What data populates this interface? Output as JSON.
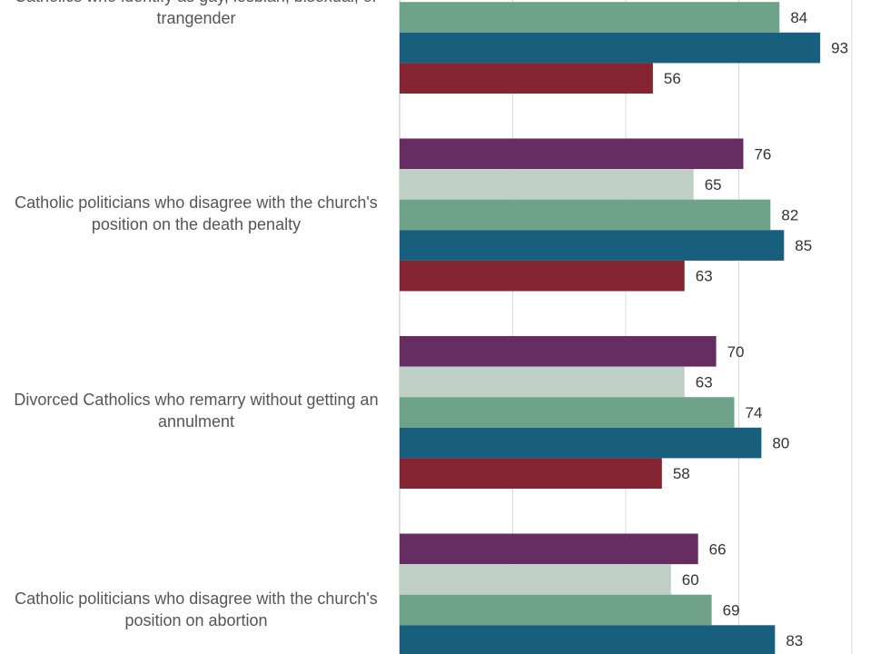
{
  "chart_data": {
    "type": "bar",
    "orientation": "horizontal",
    "categories": [
      "Catholics who identify as gay, lesbian, bisexual, or trangender",
      "Catholic politicians who disagree with the church's position on the death penalty",
      "Divorced Catholics who remarry without getting an annulment",
      "Catholic politicians who disagree with the church's position on abortion"
    ],
    "series": [
      {
        "color": "#652d62",
        "values": [
          null,
          76,
          70,
          66
        ]
      },
      {
        "color": "#c0cfc5",
        "values": [
          null,
          65,
          63,
          60
        ]
      },
      {
        "color": "#6fa389",
        "values": [
          84,
          82,
          74,
          69
        ]
      },
      {
        "color": "#175f7c",
        "values": [
          93,
          85,
          80,
          83
        ]
      },
      {
        "color": "#862532",
        "values": [
          56,
          63,
          58,
          null
        ]
      }
    ],
    "xlim": [
      0,
      100
    ],
    "grid": true,
    "gridline_color": "#d9d9d9"
  }
}
